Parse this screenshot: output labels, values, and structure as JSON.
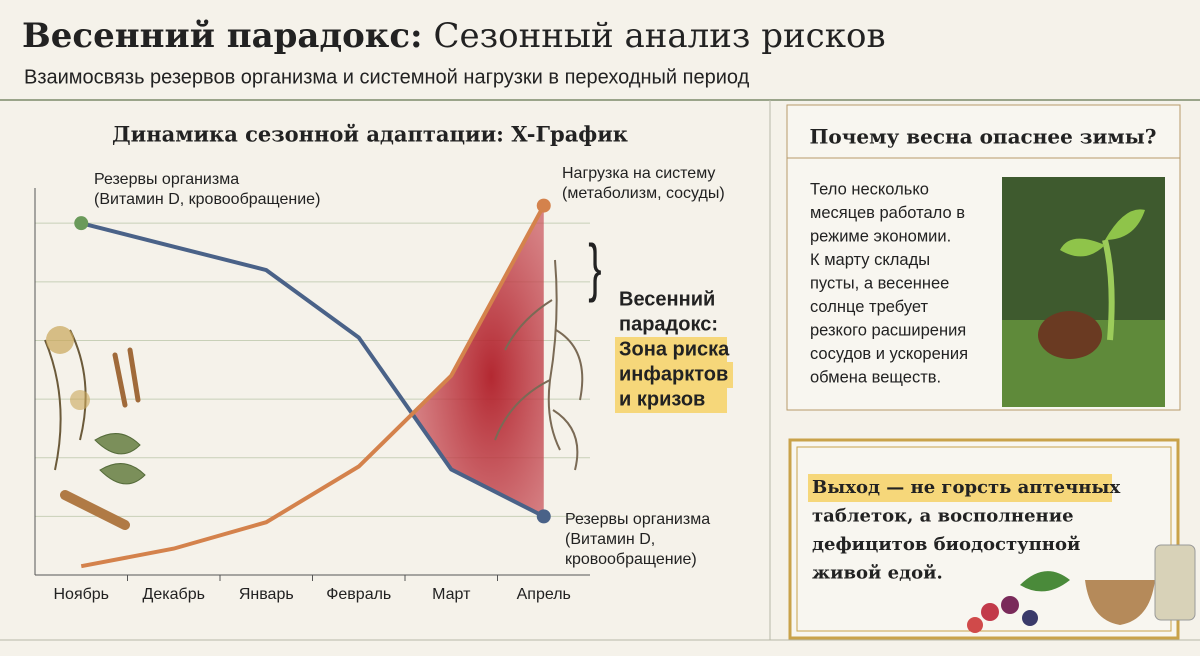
{
  "header": {
    "title_bold": "Весенний парадокс:",
    "title_rest": "Сезонный анализ рисков",
    "subtitle": "Взаимосвязь резервов организма и системной нагрузки в переходный период"
  },
  "chart_data": {
    "type": "line",
    "title": "Динамика сезонной адаптации: X-График",
    "categories": [
      "Ноябрь",
      "Декабрь",
      "Январь",
      "Февраль",
      "Март",
      "Апрель"
    ],
    "series": [
      {
        "name": "Резервы организма",
        "color": "#4a6288",
        "values": [
          6.0,
          5.6,
          5.2,
          4.05,
          1.8,
          1.0
        ]
      },
      {
        "name": "Нагрузка на систему",
        "color": "#d4824c",
        "values": [
          0.15,
          0.45,
          0.9,
          1.85,
          3.4,
          6.3
        ]
      }
    ],
    "ylim": [
      0,
      6.6
    ],
    "yticks": [
      1,
      2,
      3,
      4,
      5,
      6
    ],
    "grid": true,
    "annotations": {
      "reserves_top_note": "(Витамин D, кровообращение)",
      "load_note": "(метаболизм, сосуды)",
      "reserves_bottom_note": [
        "(Витамин D,",
        "кровообращение)"
      ],
      "zone": [
        "Весенний",
        "парадокс:",
        "Зона риска",
        "инфарктов",
        "и кризов"
      ]
    }
  },
  "sidebar": {
    "title": "Почему весна опаснее зимы?",
    "text": [
      "Тело несколько",
      "месяцев работало в",
      "режиме экономии.",
      "К марту склады",
      "пусты, а весеннее",
      "солнце требует",
      "резкого расширения",
      "сосудов и ускорения",
      "обмена веществ."
    ],
    "exit": [
      "Выход — не горсть аптечных",
      "таблеток, а восполнение",
      "дефицитов биодоступной",
      "живой едой."
    ]
  }
}
